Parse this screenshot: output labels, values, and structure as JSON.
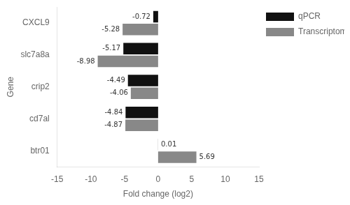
{
  "chart_data": {
    "type": "bar",
    "orientation": "horizontal",
    "categories": [
      "btr01",
      "cd7al",
      "crip2",
      "slc7a8a",
      "CXCL9"
    ],
    "series": [
      {
        "name": "qPCR",
        "color": "#111111",
        "values": [
          0.01,
          -4.84,
          -4.49,
          -5.17,
          -0.72
        ]
      },
      {
        "name": "Transcriptome",
        "color": "#888888",
        "values": [
          5.69,
          -4.87,
          -4.06,
          -8.98,
          -5.28
        ]
      }
    ],
    "xlabel": "Fold change (log2)",
    "ylabel": "Gene",
    "xlim": [
      -15,
      15
    ],
    "xticks": [
      -15,
      -10,
      -5,
      0,
      5,
      10,
      15
    ],
    "grid": false,
    "legend": "upper right",
    "data_labels": true
  }
}
